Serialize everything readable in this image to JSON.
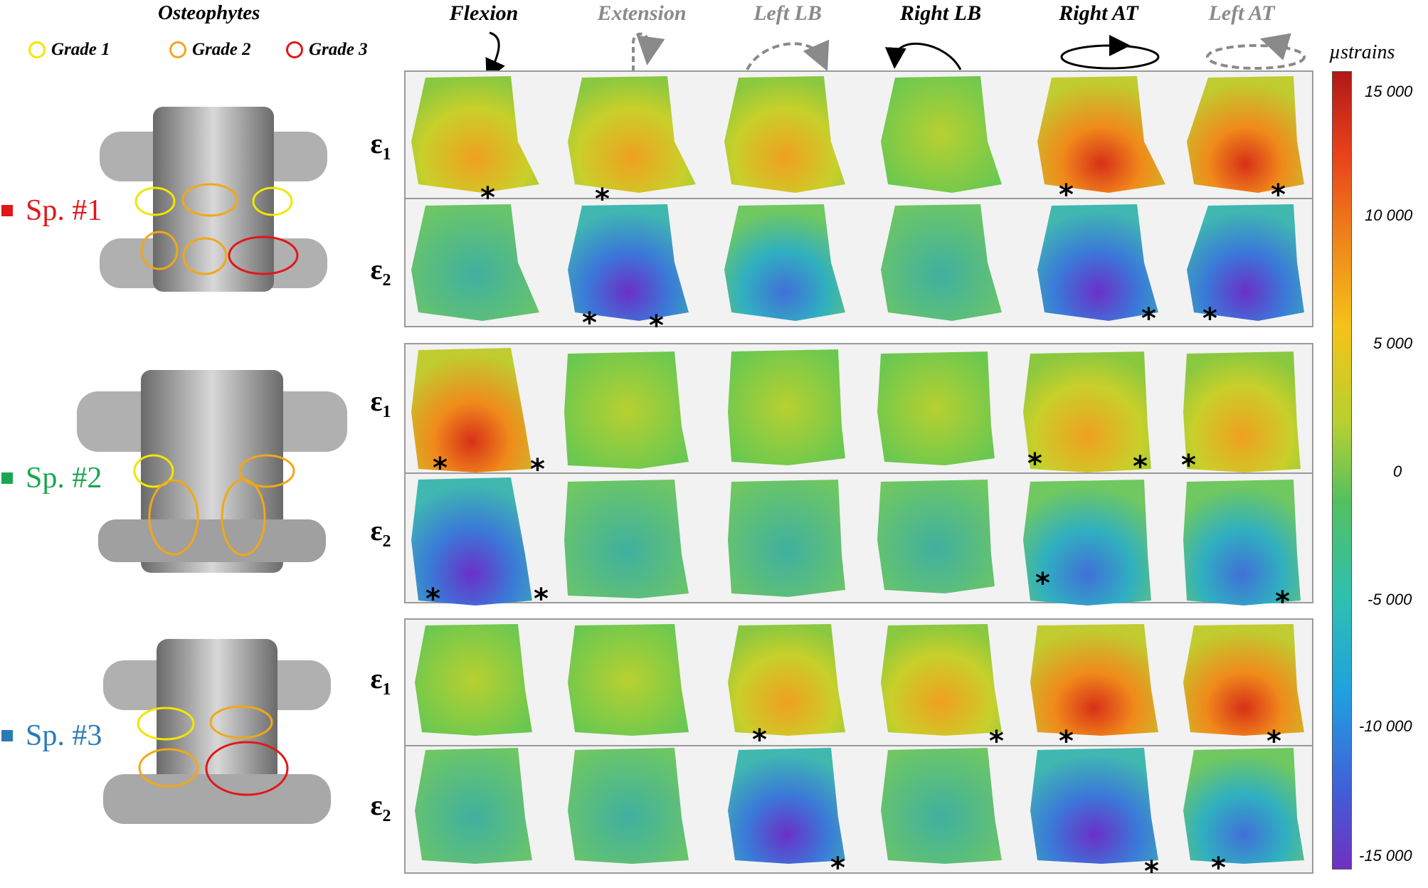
{
  "header": {
    "title": "Osteophytes"
  },
  "legend": [
    {
      "label": "Grade 1",
      "color": "#f2e600"
    },
    {
      "label": "Grade 2",
      "color": "#f0a818"
    },
    {
      "label": "Grade 3",
      "color": "#e01818"
    }
  ],
  "movements": [
    {
      "label": "Flexion",
      "color": "#000000",
      "active": true
    },
    {
      "label": "Extension",
      "color": "#8a8a8a",
      "active": false
    },
    {
      "label": "Left LB",
      "color": "#8a8a8a",
      "active": false
    },
    {
      "label": "Right LB",
      "color": "#000000",
      "active": true
    },
    {
      "label": "Right AT",
      "color": "#000000",
      "active": true
    },
    {
      "label": "Left AT",
      "color": "#8a8a8a",
      "active": false
    }
  ],
  "specimens": [
    {
      "label": "Sp. #1",
      "color": "#e01818"
    },
    {
      "label": "Sp. #2",
      "color": "#1aa650"
    },
    {
      "label": "Sp. #3",
      "color": "#2a7ab8"
    }
  ],
  "strain_labels": {
    "e1": "ε",
    "e1_sub": "1",
    "e2": "ε",
    "e2_sub": "2"
  },
  "colorbar": {
    "title": "µstrains",
    "ticks": [
      "15 000",
      "10 000",
      "5 000",
      "0",
      "-5 000",
      "-10 000",
      "-15 000"
    ],
    "stops": [
      "#b01818",
      "#e8401a",
      "#f08a1a",
      "#f5c21a",
      "#b8d030",
      "#52c060",
      "#2ec0b0",
      "#20a0e0",
      "#4060d8",
      "#7030c0"
    ]
  },
  "asterisk": "*"
}
